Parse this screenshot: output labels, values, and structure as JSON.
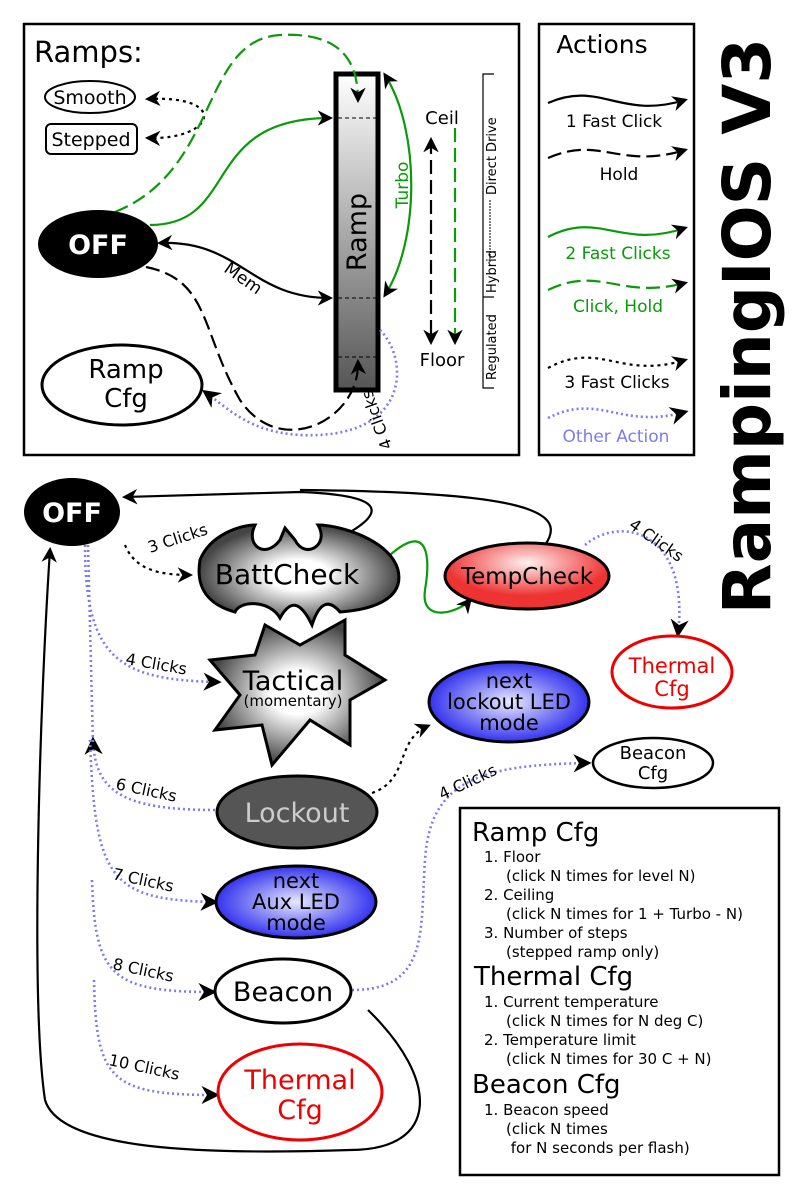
{
  "title": "RampingIOS V3",
  "ramps_panel": {
    "heading": "Ramps:",
    "smooth": "Smooth",
    "stepped": "Stepped",
    "off": "OFF",
    "ramp_cfg": [
      "Ramp",
      "Cfg"
    ],
    "ramp": "Ramp",
    "turbo": "Turbo",
    "mem": "Mem",
    "ceil": "Ceil",
    "floor": "Floor",
    "four_clicks": "4 Clicks",
    "power_modes": [
      "Regulated",
      "Hybrid",
      "Direct Drive"
    ]
  },
  "actions_legend": {
    "heading": "Actions",
    "items": [
      {
        "label": "1 Fast Click",
        "color": "#000000",
        "style": "solid"
      },
      {
        "label": "Hold",
        "color": "#000000",
        "style": "dashed"
      },
      {
        "label": "2 Fast Clicks",
        "color": "#0a9a0a",
        "style": "solid"
      },
      {
        "label": "Click, Hold",
        "color": "#0a9a0a",
        "style": "dashed"
      },
      {
        "label": "3 Fast Clicks",
        "color": "#000000",
        "style": "dotted"
      },
      {
        "label": "Other Action",
        "color": "#7c7cf0",
        "style": "dotted"
      }
    ]
  },
  "states": {
    "off": "OFF",
    "battcheck": "BattCheck",
    "tempcheck": "TempCheck",
    "thermal_cfg_top": [
      "Thermal",
      "Cfg"
    ],
    "tactical": "Tactical",
    "tactical_sub": "(momentary)",
    "lockout_led": [
      "next",
      "lockout LED",
      "mode"
    ],
    "beacon_cfg": [
      "Beacon",
      "Cfg"
    ],
    "lockout": "Lockout",
    "aux_led": [
      "next",
      "Aux LED",
      "mode"
    ],
    "beacon": "Beacon",
    "thermal_cfg": [
      "Thermal",
      "Cfg"
    ]
  },
  "edge_labels": {
    "battcheck": "3 Clicks",
    "tactical": "4 Clicks",
    "lockout": "6 Clicks",
    "aux": "7 Clicks",
    "beacon": "8 Clicks",
    "thermal": "10 Clicks",
    "beacon_cfg": "4 Clicks",
    "thermal_cfg": "4 Clicks"
  },
  "config_notes": {
    "sections": [
      {
        "heading": "Ramp Cfg",
        "lines": [
          "1. Floor",
          "(click N times for level N)",
          "2. Ceiling",
          "(click N times for 1 + Turbo - N)",
          "3. Number of steps",
          "(stepped ramp only)"
        ]
      },
      {
        "heading": "Thermal Cfg",
        "lines": [
          "1. Current temperature",
          "(click N times for N deg C)",
          "2. Temperature limit",
          "(click N times for 30 C + N)"
        ]
      },
      {
        "heading": "Beacon Cfg",
        "lines": [
          "1. Beacon speed",
          "(click N times",
          " for N seconds per flash)"
        ]
      }
    ]
  },
  "colors": {
    "green": "#0a9a0a",
    "blue": "#7c7cf0",
    "red": "#ee0000"
  }
}
